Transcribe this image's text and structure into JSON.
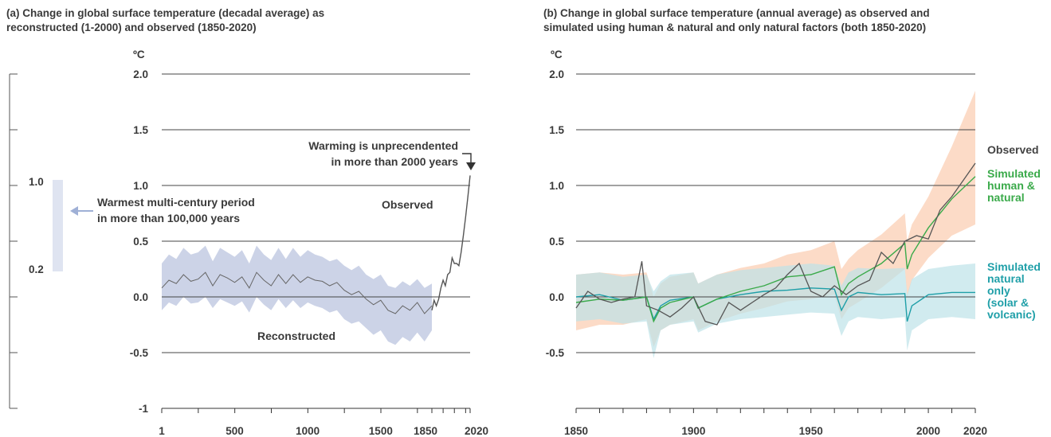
{
  "panel_a": {
    "title_line1": "(a) Change in global surface temperature (decadal average) as",
    "title_line2": "reconstructed (1-2000) and observed (1850-2020)",
    "unit": "ºC",
    "left_scale": {
      "top_label": "1.0",
      "bottom_label": "0.2"
    },
    "annotations": {
      "warmest_line1": "Warmest multi-century period",
      "warmest_line2": "in more than 100,000 years",
      "unprecedented_line1": "Warming is unprecendented",
      "unprecedented_line2": "in more than 2000 years",
      "observed": "Observed",
      "reconstructed": "Reconstructed"
    }
  },
  "panel_b": {
    "title_line1": "(b) Change in global surface temperature (annual average) as observed and",
    "title_line2": "simulated using human & natural and only natural factors (both 1850-2020)",
    "unit": "ºC",
    "legend": {
      "observed": [
        "Observed"
      ],
      "human_natural": [
        "Simulated",
        "human &",
        "natural"
      ],
      "natural_only": [
        "Simulated",
        "natural",
        "only",
        "(solar &",
        "volcanic)"
      ]
    }
  },
  "colors": {
    "observed": "#555555",
    "reconstructed_band": "#ccd3e7",
    "reconstructed_line": "#666666",
    "human_natural": "#3aaa4a",
    "human_natural_band": "#fbd5bd",
    "natural_only": "#1f9fa8",
    "natural_only_band": "#bde3e8",
    "grid": "#444444",
    "left_bar": "#dfe4f1",
    "arrow": "#9fb0d6"
  },
  "chart_data": [
    {
      "type": "line",
      "title": "(a) Change in global surface temperature (decadal average) as reconstructed (1-2000) and observed (1850-2020)",
      "ylabel": "ºC",
      "ylim": [
        -1,
        2
      ],
      "yticks": [
        "2.0",
        "1.5",
        "1.0",
        "0.5",
        "0.0",
        "-0.5",
        "-1"
      ],
      "xticks": [
        "1",
        "500",
        "1000",
        "1500",
        "1850",
        "2020"
      ],
      "x_axis_segments": [
        [
          1,
          1850
        ],
        [
          1850,
          2020
        ]
      ],
      "series": [
        {
          "name": "Reconstructed",
          "x": [
            1,
            50,
            100,
            150,
            200,
            250,
            300,
            350,
            400,
            450,
            500,
            550,
            600,
            650,
            700,
            750,
            800,
            850,
            900,
            950,
            1000,
            1050,
            1100,
            1150,
            1200,
            1250,
            1300,
            1350,
            1400,
            1450,
            1500,
            1550,
            1600,
            1650,
            1700,
            1750,
            1800,
            1850
          ],
          "values": [
            0.08,
            0.15,
            0.12,
            0.2,
            0.14,
            0.16,
            0.22,
            0.1,
            0.2,
            0.17,
            0.13,
            0.18,
            0.08,
            0.22,
            0.15,
            0.1,
            0.2,
            0.12,
            0.2,
            0.13,
            0.18,
            0.15,
            0.14,
            0.1,
            0.13,
            0.06,
            0.02,
            0.05,
            -0.02,
            -0.07,
            -0.03,
            -0.12,
            -0.15,
            -0.08,
            -0.12,
            -0.05,
            -0.15,
            -0.08
          ],
          "lower": [
            -0.12,
            -0.05,
            -0.08,
            0.0,
            -0.06,
            -0.05,
            0.0,
            -0.1,
            -0.02,
            -0.05,
            -0.08,
            -0.04,
            -0.14,
            0.0,
            -0.07,
            -0.12,
            -0.02,
            -0.1,
            -0.03,
            -0.1,
            -0.05,
            -0.08,
            -0.1,
            -0.14,
            -0.12,
            -0.2,
            -0.24,
            -0.22,
            -0.28,
            -0.34,
            -0.3,
            -0.4,
            -0.43,
            -0.36,
            -0.4,
            -0.32,
            -0.4,
            -0.3
          ],
          "upper": [
            0.3,
            0.38,
            0.34,
            0.44,
            0.38,
            0.4,
            0.46,
            0.32,
            0.44,
            0.4,
            0.36,
            0.42,
            0.3,
            0.46,
            0.38,
            0.33,
            0.44,
            0.34,
            0.44,
            0.36,
            0.42,
            0.38,
            0.36,
            0.32,
            0.34,
            0.28,
            0.24,
            0.28,
            0.2,
            0.16,
            0.2,
            0.1,
            0.08,
            0.14,
            0.1,
            0.16,
            0.08,
            0.12
          ]
        },
        {
          "name": "Observed",
          "x": [
            1850,
            1860,
            1870,
            1880,
            1890,
            1900,
            1910,
            1920,
            1930,
            1940,
            1950,
            1960,
            1970,
            1980,
            1990,
            2000,
            2010,
            2020
          ],
          "values": [
            -0.12,
            -0.03,
            -0.08,
            -0.02,
            0.08,
            0.15,
            0.1,
            0.2,
            0.22,
            0.35,
            0.3,
            0.3,
            0.28,
            0.4,
            0.55,
            0.72,
            0.9,
            1.09
          ]
        }
      ],
      "annotations": [
        "Warming is unprecendented in more than 2000 years",
        "Warmest multi-century period in more than 100,000 years"
      ]
    },
    {
      "type": "line",
      "title": "(b) Change in global surface temperature (annual average) as observed and simulated using human & natural and only natural factors (both 1850-2020)",
      "ylabel": "ºC",
      "ylim": [
        -1,
        2
      ],
      "yticks": [
        "2.0",
        "1.5",
        "1.0",
        "0.5",
        "0.0",
        "-0.5"
      ],
      "xticks": [
        "1850",
        "1900",
        "1950",
        "2000",
        "2020"
      ],
      "series": [
        {
          "name": "Observed",
          "x": [
            1850,
            1855,
            1860,
            1865,
            1870,
            1875,
            1878,
            1880,
            1885,
            1890,
            1895,
            1900,
            1905,
            1910,
            1915,
            1920,
            1925,
            1930,
            1935,
            1940,
            1945,
            1950,
            1955,
            1960,
            1965,
            1970,
            1975,
            1980,
            1985,
            1990,
            1995,
            2000,
            2005,
            2010,
            2015,
            2020
          ],
          "values": [
            -0.1,
            0.05,
            -0.02,
            -0.05,
            -0.02,
            0.0,
            0.32,
            -0.08,
            -0.12,
            -0.18,
            -0.1,
            0.0,
            -0.22,
            -0.25,
            -0.05,
            -0.12,
            -0.05,
            0.02,
            0.08,
            0.2,
            0.3,
            0.05,
            0.0,
            0.1,
            0.02,
            0.1,
            0.15,
            0.4,
            0.3,
            0.5,
            0.55,
            0.52,
            0.78,
            0.9,
            1.05,
            1.2
          ]
        },
        {
          "name": "Simulated human & natural",
          "x": [
            1850,
            1860,
            1870,
            1880,
            1883,
            1886,
            1890,
            1900,
            1902,
            1910,
            1920,
            1930,
            1940,
            1950,
            1960,
            1963,
            1966,
            1970,
            1980,
            1990,
            1991,
            1993,
            2000,
            2010,
            2020
          ],
          "values": [
            -0.05,
            -0.02,
            -0.03,
            0.0,
            -0.22,
            -0.1,
            -0.05,
            0.0,
            -0.1,
            -0.02,
            0.05,
            0.1,
            0.18,
            0.2,
            0.27,
            0.02,
            0.12,
            0.18,
            0.3,
            0.48,
            0.25,
            0.38,
            0.62,
            0.88,
            1.08
          ],
          "lower": [
            -0.3,
            -0.25,
            -0.25,
            -0.2,
            -0.45,
            -0.3,
            -0.25,
            -0.2,
            -0.3,
            -0.22,
            -0.15,
            -0.1,
            -0.04,
            -0.02,
            0.02,
            -0.2,
            -0.1,
            -0.05,
            0.08,
            0.25,
            0.0,
            0.15,
            0.35,
            0.55,
            0.65
          ],
          "upper": [
            0.2,
            0.22,
            0.2,
            0.22,
            0.0,
            0.12,
            0.18,
            0.22,
            0.12,
            0.2,
            0.26,
            0.3,
            0.38,
            0.42,
            0.5,
            0.25,
            0.34,
            0.42,
            0.56,
            0.75,
            0.5,
            0.65,
            0.9,
            1.35,
            1.85
          ]
        },
        {
          "name": "Simulated natural only (solar & volcanic)",
          "x": [
            1850,
            1860,
            1870,
            1880,
            1883,
            1886,
            1890,
            1900,
            1902,
            1910,
            1920,
            1930,
            1940,
            1950,
            1960,
            1963,
            1966,
            1970,
            1980,
            1990,
            1991,
            1993,
            2000,
            2010,
            2020
          ],
          "values": [
            0.0,
            0.02,
            -0.03,
            0.0,
            -0.2,
            -0.08,
            -0.03,
            0.0,
            -0.1,
            -0.02,
            0.02,
            0.05,
            0.06,
            0.08,
            0.07,
            -0.12,
            0.0,
            0.04,
            0.02,
            0.03,
            -0.22,
            -0.08,
            0.02,
            0.04,
            0.04
          ],
          "lower": [
            -0.22,
            -0.2,
            -0.24,
            -0.22,
            -0.55,
            -0.3,
            -0.25,
            -0.22,
            -0.32,
            -0.24,
            -0.2,
            -0.18,
            -0.16,
            -0.14,
            -0.15,
            -0.35,
            -0.22,
            -0.18,
            -0.2,
            -0.18,
            -0.48,
            -0.3,
            -0.2,
            -0.18,
            -0.2
          ],
          "upper": [
            0.2,
            0.22,
            0.18,
            0.2,
            0.05,
            0.14,
            0.2,
            0.22,
            0.12,
            0.2,
            0.24,
            0.26,
            0.28,
            0.3,
            0.28,
            0.1,
            0.22,
            0.26,
            0.25,
            0.26,
            0.02,
            0.16,
            0.25,
            0.28,
            0.3
          ]
        }
      ]
    }
  ]
}
